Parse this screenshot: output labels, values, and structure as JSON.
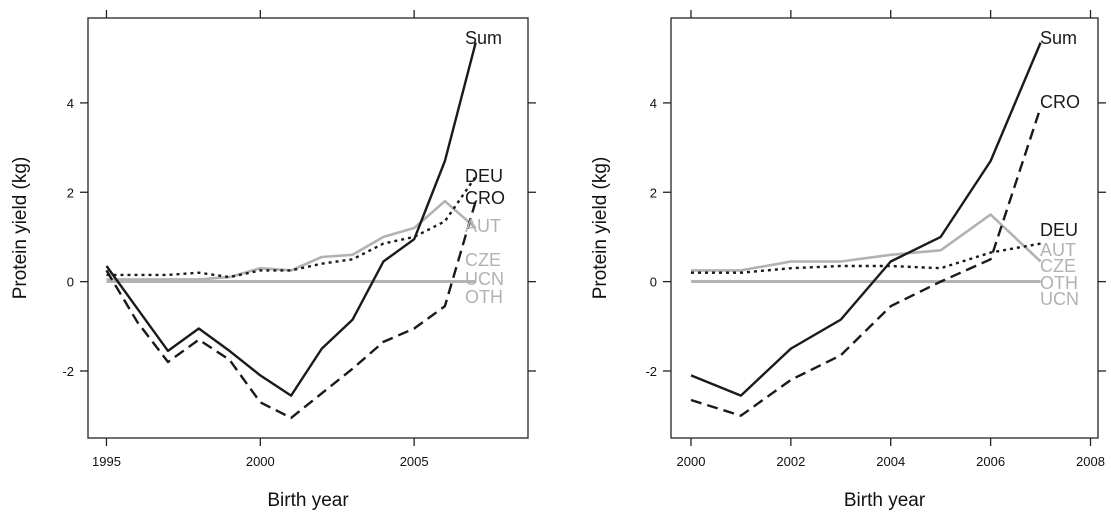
{
  "chart_data": [
    {
      "type": "line",
      "title": "",
      "xlabel": "Birth year",
      "ylabel": "Protein yield (kg)",
      "xlim": [
        1994.4,
        2008.7
      ],
      "ylim": [
        -3.5,
        5.9
      ],
      "xticks": [
        1995,
        2000,
        2005
      ],
      "xtick_labels": [
        "1995",
        "2000",
        "2005"
      ],
      "yticks": [
        -2,
        0,
        2,
        4
      ],
      "ytick_labels": [
        "-2",
        "0",
        "2",
        "4"
      ],
      "grid": false,
      "legend": "labels at line ends (right side)",
      "series": [
        {
          "name": "Sum",
          "color": "#1a1a1a",
          "style": "solid",
          "x": [
            1995,
            1996,
            1997,
            1998,
            1999,
            2000,
            2001,
            2002,
            2003,
            2004,
            2005,
            2006,
            2007
          ],
          "y": [
            0.35,
            -0.6,
            -1.55,
            -1.05,
            -1.55,
            -2.1,
            -2.55,
            -1.5,
            -0.85,
            0.45,
            0.95,
            2.7,
            5.35
          ]
        },
        {
          "name": "DEU",
          "color": "#1a1a1a",
          "style": "dotted",
          "x": [
            1995,
            1996,
            1997,
            1998,
            1999,
            2000,
            2001,
            2002,
            2003,
            2004,
            2005,
            2006,
            2007
          ],
          "y": [
            0.15,
            0.15,
            0.15,
            0.2,
            0.1,
            0.25,
            0.25,
            0.4,
            0.5,
            0.85,
            1.0,
            1.35,
            2.35
          ]
        },
        {
          "name": "CRO",
          "color": "#1a1a1a",
          "style": "dashed",
          "x": [
            1995,
            1996,
            1997,
            1998,
            1999,
            2000,
            2001,
            2002,
            2003,
            2004,
            2005,
            2006,
            2007
          ],
          "y": [
            0.25,
            -0.9,
            -1.8,
            -1.3,
            -1.75,
            -2.7,
            -3.05,
            -2.5,
            -1.95,
            -1.35,
            -1.05,
            -0.55,
            1.8
          ]
        },
        {
          "name": "AUT",
          "color": "#b2b2b2",
          "style": "solid",
          "x": [
            1995,
            1996,
            1997,
            1998,
            1999,
            2000,
            2001,
            2002,
            2003,
            2004,
            2005,
            2006,
            2007
          ],
          "y": [
            0.05,
            0.05,
            0.05,
            0.05,
            0.1,
            0.3,
            0.25,
            0.55,
            0.6,
            1.0,
            1.2,
            1.8,
            1.2
          ]
        },
        {
          "name": "CZE",
          "color": "#b2b2b2",
          "style": "solid",
          "x": [
            1995,
            2007
          ],
          "y": [
            0.0,
            0.0
          ]
        },
        {
          "name": "UCN",
          "color": "#b2b2b2",
          "style": "solid",
          "x": [
            1995,
            2007
          ],
          "y": [
            0.0,
            0.0
          ]
        },
        {
          "name": "OTH",
          "color": "#b2b2b2",
          "style": "solid",
          "x": [
            1995,
            2007
          ],
          "y": [
            0.0,
            0.0
          ]
        }
      ]
    },
    {
      "type": "line",
      "title": "",
      "xlabel": "Birth year",
      "ylabel": "Protein yield (kg)",
      "xlim": [
        1999.6,
        2008.15
      ],
      "ylim": [
        -3.5,
        5.9
      ],
      "xticks": [
        2000,
        2002,
        2004,
        2006,
        2008
      ],
      "xtick_labels": [
        "2000",
        "2002",
        "2004",
        "2006",
        "2008"
      ],
      "yticks": [
        -2,
        0,
        2,
        4
      ],
      "ytick_labels": [
        "-2",
        "0",
        "2",
        "4"
      ],
      "grid": false,
      "legend": "labels at line ends (right side)",
      "series": [
        {
          "name": "Sum",
          "color": "#1a1a1a",
          "style": "solid",
          "x": [
            2000,
            2001,
            2002,
            2003,
            2004,
            2005,
            2006,
            2007
          ],
          "y": [
            -2.1,
            -2.55,
            -1.5,
            -0.85,
            0.45,
            1.0,
            2.7,
            5.35
          ]
        },
        {
          "name": "CRO",
          "color": "#1a1a1a",
          "style": "dashed",
          "x": [
            2000,
            2001,
            2002,
            2003,
            2004,
            2005,
            2006,
            2007
          ],
          "y": [
            -2.65,
            -3.0,
            -2.2,
            -1.65,
            -0.55,
            0.0,
            0.5,
            3.9
          ]
        },
        {
          "name": "DEU",
          "color": "#1a1a1a",
          "style": "dotted",
          "x": [
            2000,
            2001,
            2002,
            2003,
            2004,
            2005,
            2006,
            2007
          ],
          "y": [
            0.2,
            0.2,
            0.3,
            0.35,
            0.35,
            0.3,
            0.65,
            0.85
          ]
        },
        {
          "name": "AUT",
          "color": "#b2b2b2",
          "style": "solid",
          "x": [
            2000,
            2001,
            2002,
            2003,
            2004,
            2005,
            2006,
            2007
          ],
          "y": [
            0.25,
            0.25,
            0.45,
            0.45,
            0.6,
            0.7,
            1.5,
            0.45
          ]
        },
        {
          "name": "CZE",
          "color": "#b2b2b2",
          "style": "solid",
          "x": [
            2000,
            2007
          ],
          "y": [
            0.0,
            0.0
          ]
        },
        {
          "name": "OTH",
          "color": "#b2b2b2",
          "style": "solid",
          "x": [
            2000,
            2007
          ],
          "y": [
            0.0,
            0.0
          ]
        },
        {
          "name": "UCN",
          "color": "#b2b2b2",
          "style": "solid",
          "x": [
            2000,
            2007
          ],
          "y": [
            0.0,
            0.0
          ]
        }
      ]
    }
  ]
}
